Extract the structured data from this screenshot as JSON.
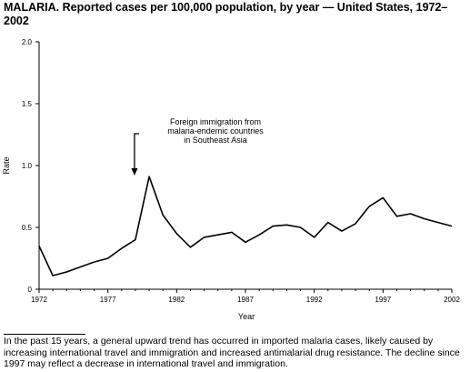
{
  "title": {
    "name": "MALARIA.",
    "text": "Reported cases per 100,000 population, by year — United States, 1972–2002"
  },
  "footnote": "In the past 15 years, a general upward trend has occurred in imported malaria cases, likely caused by increasing international travel and immigration and increased antimalarial drug resistance. The decline since 1997 may reflect a decrease in international travel and immigration.",
  "chart_data": {
    "type": "line",
    "xlabel": "Year",
    "ylabel": "Rate",
    "xlim": [
      1972,
      2002
    ],
    "ylim": [
      0,
      2.0
    ],
    "x_ticks": [
      1972,
      1977,
      1982,
      1987,
      1992,
      1997,
      2002
    ],
    "y_ticks": [
      "0",
      "0.5",
      "1.0",
      "1.5",
      "2.0"
    ],
    "grid": false,
    "line_color": "#000000",
    "series": [
      {
        "x": [
          1972,
          1973,
          1974,
          1975,
          1976,
          1977,
          1978,
          1979,
          1980,
          1981,
          1982,
          1983,
          1984,
          1985,
          1986,
          1987,
          1988,
          1989,
          1990,
          1991,
          1992,
          1993,
          1994,
          1995,
          1996,
          1997,
          1998,
          1999,
          2000,
          2001,
          2002
        ],
        "values": [
          0.35,
          0.11,
          0.14,
          0.18,
          0.22,
          0.25,
          0.33,
          0.4,
          0.91,
          0.6,
          0.45,
          0.34,
          0.42,
          0.44,
          0.46,
          0.38,
          0.44,
          0.51,
          0.52,
          0.5,
          0.42,
          0.54,
          0.47,
          0.53,
          0.67,
          0.74,
          0.59,
          0.61,
          0.57,
          0.54,
          0.51
        ]
      }
    ],
    "annotation": {
      "lines": [
        "Foreign immigration from",
        "malaria-endemic countries",
        "in Southeast Asia"
      ],
      "arrow_year": 1979
    }
  }
}
